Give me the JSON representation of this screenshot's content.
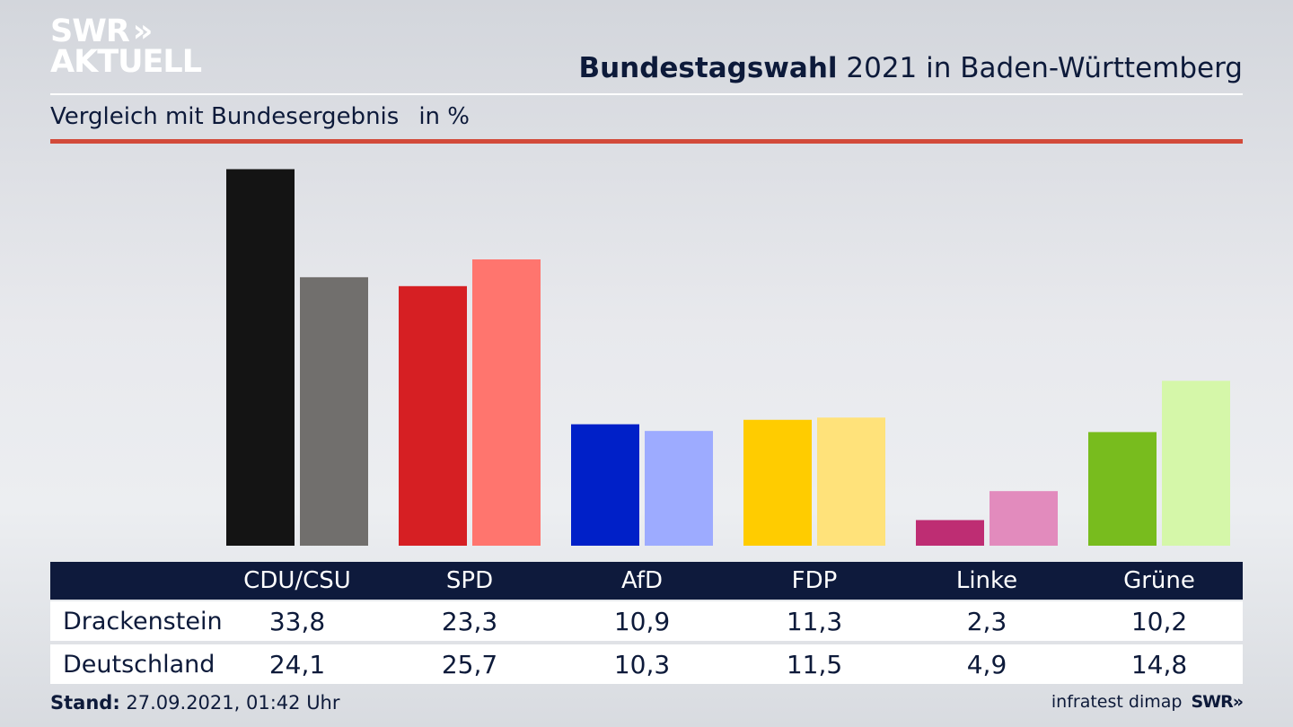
{
  "logo": {
    "line1": "SWR",
    "chevrons": "»",
    "line2": "AKTUELL"
  },
  "header": {
    "title_bold": "Bundestagswahl",
    "title_rest": "2021 in Baden-Württemberg",
    "subtitle": "Vergleich mit Bundesergebnis",
    "unit": "in %"
  },
  "chart_data": {
    "type": "bar",
    "categories": [
      "CDU/CSU",
      "SPD",
      "AfD",
      "FDP",
      "Linke",
      "Grüne"
    ],
    "series": [
      {
        "name": "Drackenstein",
        "values": [
          33.8,
          23.3,
          10.9,
          11.3,
          2.3,
          10.2
        ],
        "colors": [
          "#141414",
          "#d61f23",
          "#0020c8",
          "#ffcc00",
          "#be2d73",
          "#78bc1e"
        ]
      },
      {
        "name": "Deutschland",
        "values": [
          24.1,
          25.7,
          10.3,
          11.5,
          4.9,
          14.8
        ],
        "colors": [
          "#716f6d",
          "#ff756e",
          "#9dabff",
          "#ffe27a",
          "#e28bbd",
          "#d5f7a9"
        ]
      }
    ],
    "ylim": [
      0,
      34
    ],
    "grid": false
  },
  "table": {
    "rows": [
      {
        "label": "Drackenstein",
        "values": [
          "33,8",
          "23,3",
          "10,9",
          "11,3",
          "2,3",
          "10,2"
        ]
      },
      {
        "label": "Deutschland",
        "values": [
          "24,1",
          "25,7",
          "10,3",
          "11,5",
          "4,9",
          "14,8"
        ]
      }
    ]
  },
  "footer": {
    "stand_label": "Stand:",
    "stand_value": "27.09.2021, 01:42 Uhr",
    "source": "infratest dimap",
    "brand": "SWR",
    "brand_chevrons": "»"
  }
}
